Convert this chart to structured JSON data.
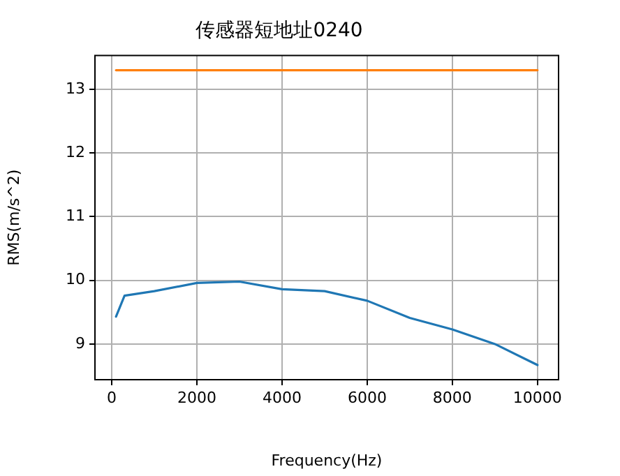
{
  "chart_data": {
    "type": "line",
    "title": "传感器短地址0240",
    "xlabel": "Frequency(Hz)",
    "ylabel": "RMS(m/s^2)",
    "x": [
      100,
      300,
      1000,
      2000,
      3000,
      4000,
      5000,
      6000,
      7000,
      8000,
      9000,
      10000
    ],
    "series": [
      {
        "color": "#1f77b4",
        "values": [
          9.43,
          9.76,
          9.83,
          9.96,
          9.98,
          9.86,
          9.83,
          9.68,
          9.41,
          9.23,
          9.0,
          8.67
        ]
      },
      {
        "color": "#ff7f0e",
        "x": [
          100,
          10000
        ],
        "values": [
          13.3,
          13.3
        ]
      }
    ],
    "xlim": [
      -395,
      10495
    ],
    "ylim": [
      8.44,
      13.53
    ],
    "xticks": [
      0,
      2000,
      4000,
      6000,
      8000,
      10000
    ],
    "yticks": [
      9,
      10,
      11,
      12,
      13
    ],
    "grid": true,
    "legend": false,
    "marker": "none",
    "line_style": "solid"
  }
}
